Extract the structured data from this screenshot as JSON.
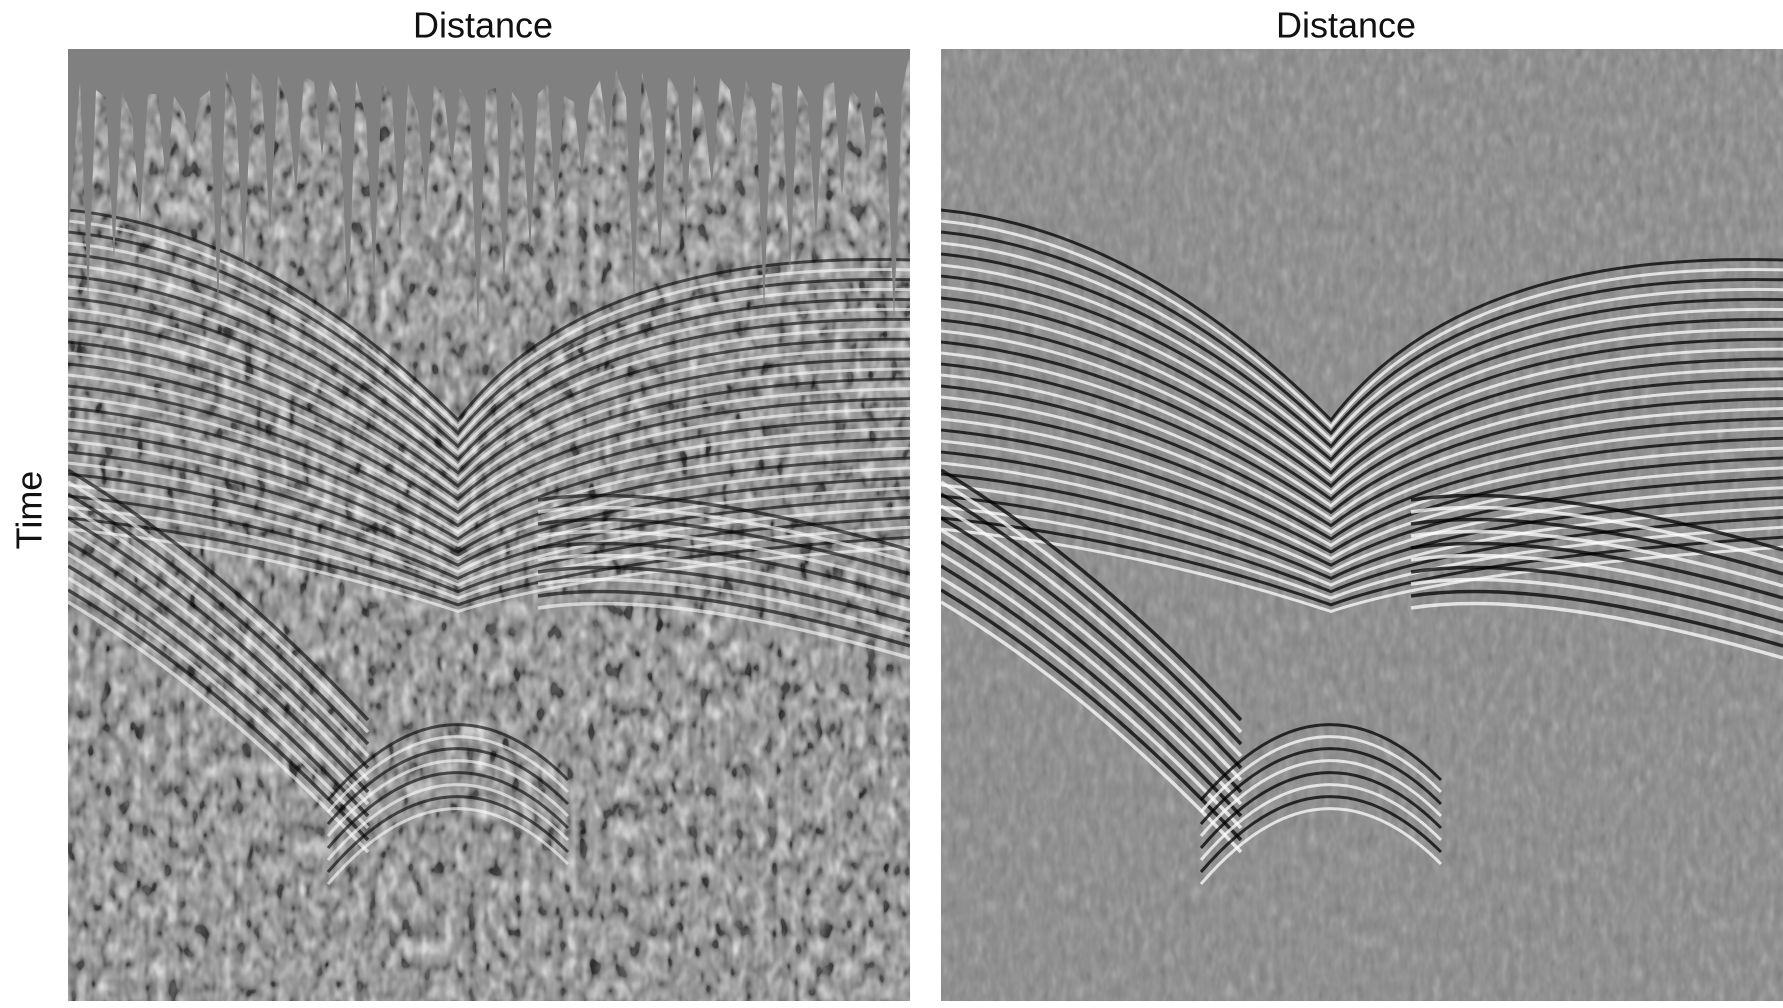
{
  "panels": [
    {
      "title": "Distance"
    },
    {
      "title": "Distance"
    }
  ],
  "y_axis_label": "Time"
}
